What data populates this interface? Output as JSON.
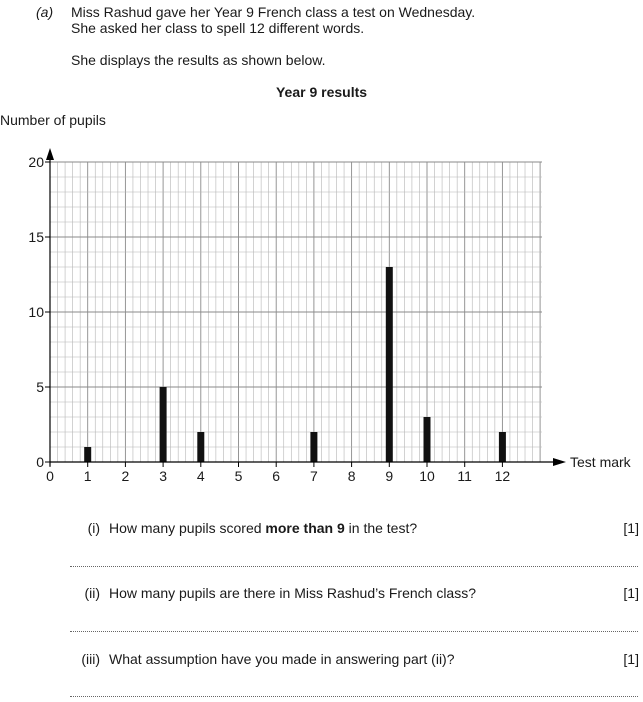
{
  "intro": {
    "part_label": "(a)",
    "line1": "Miss Rashud gave her Year 9 French class a test on Wednesday.",
    "line2": "She asked her class to spell 12 different words.",
    "line3": "She displays the results as shown below."
  },
  "chart_data": {
    "type": "bar",
    "title": "Year 9 results",
    "xlabel": "Test mark",
    "ylabel": "Number of pupils",
    "x_ticks": [
      "0",
      "1",
      "2",
      "3",
      "4",
      "5",
      "6",
      "7",
      "8",
      "9",
      "10",
      "11",
      "12"
    ],
    "y_ticks": [
      "0",
      "5",
      "10",
      "15",
      "20"
    ],
    "xlim": [
      0,
      13
    ],
    "ylim": [
      0,
      20
    ],
    "grid": true,
    "categories": [
      "1",
      "3",
      "4",
      "7",
      "9",
      "10",
      "12"
    ],
    "values": [
      1,
      5,
      2,
      2,
      13,
      3,
      2
    ]
  },
  "questions": [
    {
      "num": "(i)",
      "text_before": "How many pupils scored ",
      "text_bold": "more than 9",
      "text_after": " in the test?",
      "marks": "[1]"
    },
    {
      "num": "(ii)",
      "text_before": "How many pupils are there in Miss Rashud’s French class?",
      "text_bold": "",
      "text_after": "",
      "marks": "[1]"
    },
    {
      "num": "(iii)",
      "text_before": "What assumption have you made in answering part (ii)?",
      "text_bold": "",
      "text_after": "",
      "marks": "[1]"
    }
  ]
}
